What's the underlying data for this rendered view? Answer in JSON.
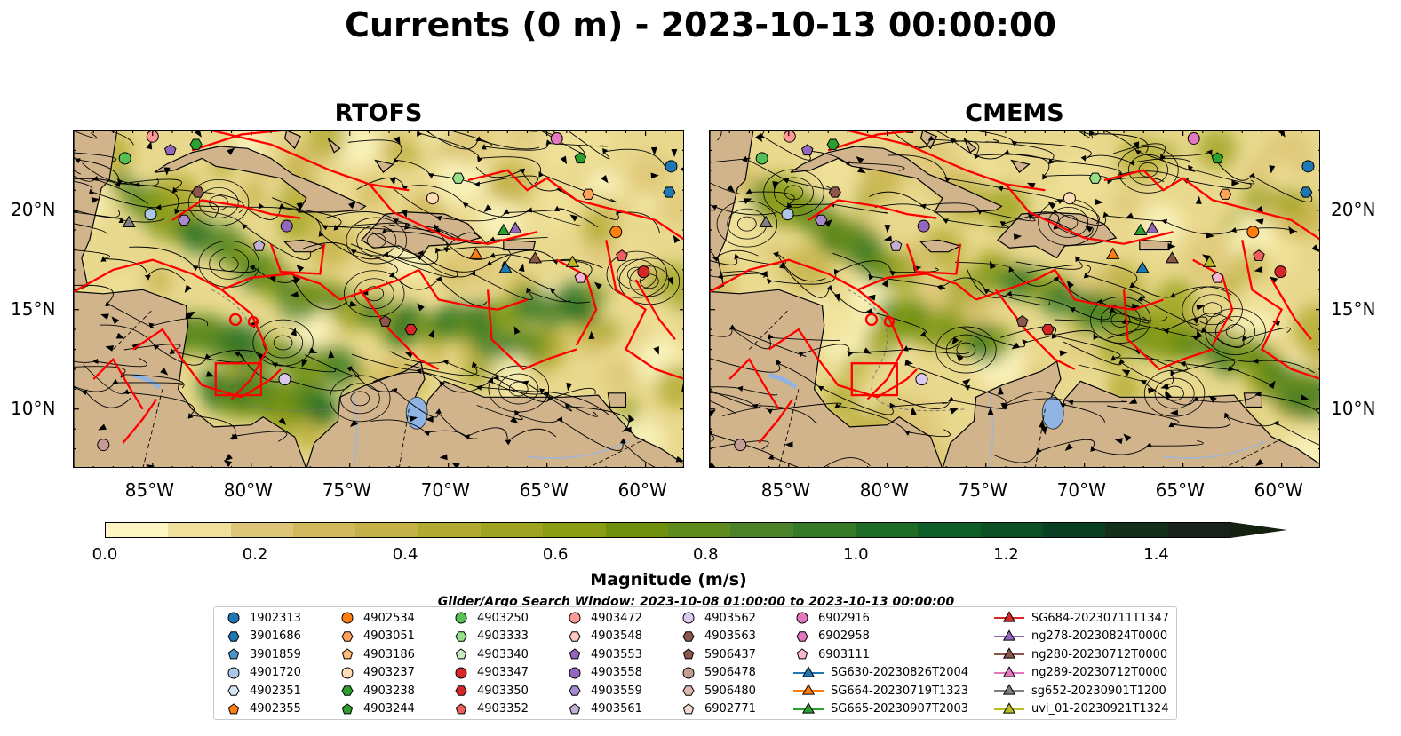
{
  "title": "Currents (0 m) - 2023-10-13 00:00:00",
  "panels": [
    {
      "title": "RTOFS"
    },
    {
      "title": "CMEMS"
    }
  ],
  "axes": {
    "lon_labels": [
      "85°W",
      "80°W",
      "75°W",
      "70°W",
      "65°W",
      "60°W"
    ],
    "lat_labels": [
      "20°N",
      "15°N",
      "10°N"
    ],
    "lon_range": [
      -89,
      -58
    ],
    "lat_range": [
      7,
      24
    ]
  },
  "colorbar": {
    "label": "Magnitude (m/s)",
    "ticks": [
      "0.0",
      "0.2",
      "0.4",
      "0.6",
      "0.8",
      "1.0",
      "1.2",
      "1.4"
    ],
    "range": [
      0,
      1.5
    ],
    "extend": "max",
    "colors": [
      "#fdf6c3",
      "#f0e19a",
      "#ddc677",
      "#d2b95e",
      "#c4b147",
      "#b1aa30",
      "#9ea422",
      "#8a9c14",
      "#6f8f0f",
      "#5e8a1e",
      "#4b8129",
      "#367927",
      "#1f6c26",
      "#0e5e27",
      "#0c4f25",
      "#0b3f23",
      "#14301b",
      "#18221a"
    ]
  },
  "map_colors": {
    "land": "#d1b48c",
    "sea_base": "#e9d98e",
    "boundaries": "#ff0000",
    "rivers": "#9fb6d6",
    "lakes": "#8fb4e3"
  },
  "legend": {
    "title": "Glider/Argo Search Window: 2023-10-08 01:00:00 to 2023-10-13 00:00:00",
    "items": [
      {
        "label": "1902313",
        "marker": "circle",
        "color": "#1f77b4"
      },
      {
        "label": "3901686",
        "marker": "hexagon",
        "color": "#1f77b4"
      },
      {
        "label": "3901859",
        "marker": "pentagon",
        "color": "#4a96cc"
      },
      {
        "label": "4901720",
        "marker": "circle",
        "color": "#aec7e8"
      },
      {
        "label": "4902351",
        "marker": "hexagon",
        "color": "#d5e6f7"
      },
      {
        "label": "4902355",
        "marker": "pentagon",
        "color": "#ff7f0e"
      },
      {
        "label": "4902534",
        "marker": "circle",
        "color": "#ff7f0e"
      },
      {
        "label": "4903051",
        "marker": "hexagon",
        "color": "#ffa25a"
      },
      {
        "label": "4903186",
        "marker": "pentagon",
        "color": "#ffbb78"
      },
      {
        "label": "4903237",
        "marker": "circle",
        "color": "#ffdcb6"
      },
      {
        "label": "4903238",
        "marker": "hexagon",
        "color": "#2ca02c"
      },
      {
        "label": "4903244",
        "marker": "pentagon",
        "color": "#2ca02c"
      },
      {
        "label": "4903250",
        "marker": "circle",
        "color": "#55c155"
      },
      {
        "label": "4903333",
        "marker": "hexagon",
        "color": "#98df8a"
      },
      {
        "label": "4903340",
        "marker": "pentagon",
        "color": "#c5f0bd"
      },
      {
        "label": "4903347",
        "marker": "circle",
        "color": "#d62728"
      },
      {
        "label": "4903350",
        "marker": "hexagon",
        "color": "#d62728"
      },
      {
        "label": "4903352",
        "marker": "pentagon",
        "color": "#ee5e5f"
      },
      {
        "label": "4903472",
        "marker": "circle",
        "color": "#ff9896"
      },
      {
        "label": "4903548",
        "marker": "hexagon",
        "color": "#ffc8c6"
      },
      {
        "label": "4903553",
        "marker": "pentagon",
        "color": "#9467bd"
      },
      {
        "label": "4903558",
        "marker": "circle",
        "color": "#9467bd"
      },
      {
        "label": "4903559",
        "marker": "hexagon",
        "color": "#a98ad0"
      },
      {
        "label": "4903561",
        "marker": "pentagon",
        "color": "#c5b0d5"
      },
      {
        "label": "4903562",
        "marker": "circle",
        "color": "#dcc8ec"
      },
      {
        "label": "4903563",
        "marker": "hexagon",
        "color": "#8c564b"
      },
      {
        "label": "5906437",
        "marker": "pentagon",
        "color": "#8c564b"
      },
      {
        "label": "5906478",
        "marker": "circle",
        "color": "#c49c94"
      },
      {
        "label": "5906480",
        "marker": "hexagon",
        "color": "#e0b7ad"
      },
      {
        "label": "6902771",
        "marker": "pentagon",
        "color": "#f5d9d2"
      },
      {
        "label": "6902916",
        "marker": "circle",
        "color": "#e377c2"
      },
      {
        "label": "6902958",
        "marker": "hexagon",
        "color": "#e377c2"
      },
      {
        "label": "6903111",
        "marker": "pentagon",
        "color": "#f7b6d2"
      },
      {
        "label": "SG630-20230826T2004",
        "marker": "triangle-line",
        "color": "#1f77b4"
      },
      {
        "label": "SG664-20230719T1323",
        "marker": "triangle-line",
        "color": "#ff7f0e"
      },
      {
        "label": "SG665-20230907T2003",
        "marker": "triangle-line",
        "color": "#2ca02c"
      },
      {
        "label": "SG684-20230711T1347",
        "marker": "triangle-line",
        "color": "#d62728"
      },
      {
        "label": "ng278-20230824T0000",
        "marker": "triangle-line",
        "color": "#9467bd"
      },
      {
        "label": "ng280-20230712T0000",
        "marker": "triangle-line",
        "color": "#8c564b"
      },
      {
        "label": "ng289-20230712T0000",
        "marker": "triangle-line",
        "color": "#e377c2"
      },
      {
        "label": "sg652-20230901T1200",
        "marker": "triangle-line",
        "color": "#7f7f7f"
      },
      {
        "label": "uvi_01-20230921T1324",
        "marker": "triangle-line",
        "color": "#bcbd22"
      }
    ]
  },
  "platforms": [
    {
      "id": "1902313",
      "lon": -58.7,
      "lat": 22.2
    },
    {
      "id": "3901686",
      "lon": -58.8,
      "lat": 20.9
    },
    {
      "id": "4901720",
      "lon": -85.1,
      "lat": 19.8
    },
    {
      "id": "4902534",
      "lon": -61.5,
      "lat": 18.9
    },
    {
      "id": "4903051",
      "lon": -62.9,
      "lat": 20.8
    },
    {
      "id": "4903237",
      "lon": -70.8,
      "lat": 20.6
    },
    {
      "id": "4903238",
      "lon": -82.8,
      "lat": 23.3
    },
    {
      "id": "4903244",
      "lon": -63.3,
      "lat": 22.6
    },
    {
      "id": "4903250",
      "lon": -86.4,
      "lat": 22.6
    },
    {
      "id": "4903333",
      "lon": -69.5,
      "lat": 21.6
    },
    {
      "id": "4903347",
      "lon": -60.1,
      "lat": 16.9
    },
    {
      "id": "4903350",
      "lon": -71.9,
      "lat": 14.0
    },
    {
      "id": "4903352",
      "lon": -61.2,
      "lat": 17.7
    },
    {
      "id": "4903472",
      "lon": -85.0,
      "lat": 23.7
    },
    {
      "id": "4903553",
      "lon": -84.1,
      "lat": 23.0
    },
    {
      "id": "4903558",
      "lon": -78.2,
      "lat": 19.2
    },
    {
      "id": "4903559",
      "lon": -83.4,
      "lat": 19.5
    },
    {
      "id": "4903561",
      "lon": -79.6,
      "lat": 18.2
    },
    {
      "id": "4903562",
      "lon": -78.3,
      "lat": 11.5
    },
    {
      "id": "4903563",
      "lon": -82.7,
      "lat": 20.9
    },
    {
      "id": "5906437",
      "lon": -73.2,
      "lat": 14.4
    },
    {
      "id": "5906478",
      "lon": -87.5,
      "lat": 8.2
    },
    {
      "id": "6902916",
      "lon": -64.5,
      "lat": 23.6
    },
    {
      "id": "6903111",
      "lon": -63.3,
      "lat": 16.6
    },
    {
      "id": "SG630",
      "lon": -67.1,
      "lat": 17.1
    },
    {
      "id": "SG664",
      "lon": -68.6,
      "lat": 17.8
    },
    {
      "id": "SG665",
      "lon": -67.2,
      "lat": 19.0
    },
    {
      "id": "ng278",
      "lon": -66.6,
      "lat": 19.1
    },
    {
      "id": "ng280",
      "lon": -65.6,
      "lat": 17.6
    },
    {
      "id": "sg652",
      "lon": -86.2,
      "lat": 19.4
    },
    {
      "id": "uvi_01",
      "lon": -63.7,
      "lat": 17.4
    }
  ]
}
